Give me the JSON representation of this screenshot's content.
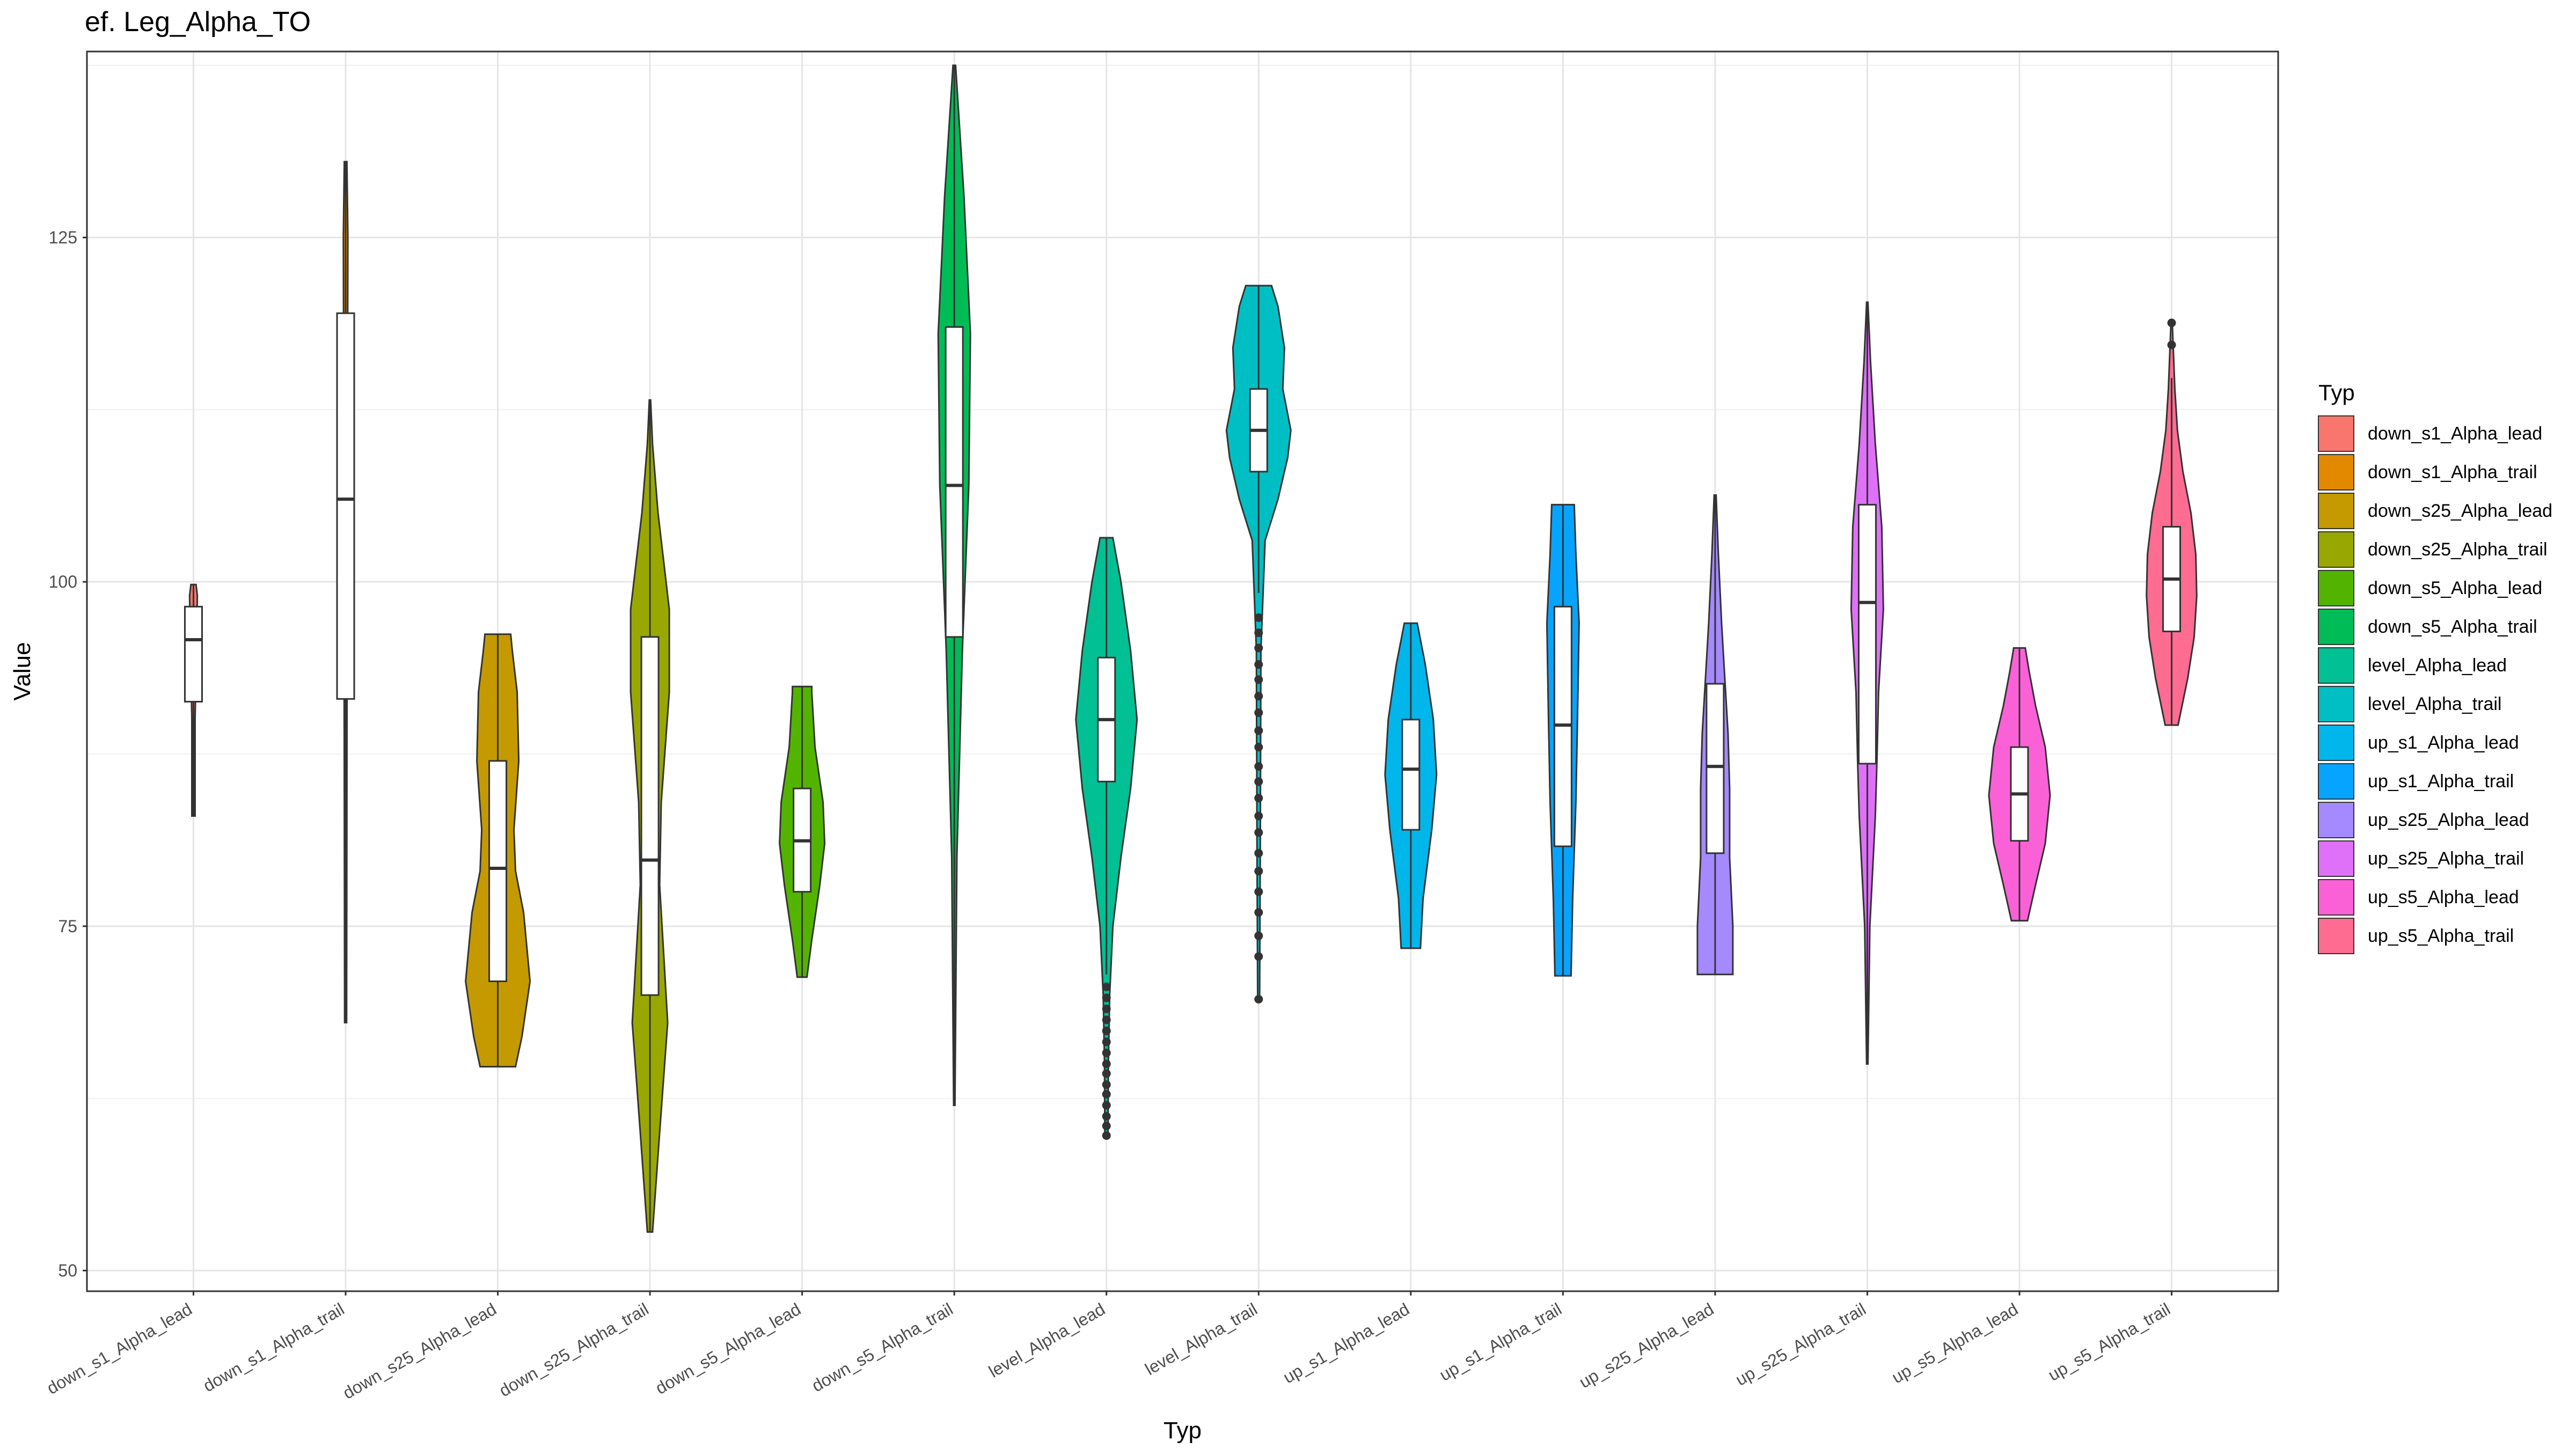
{
  "chart_data": {
    "type": "violin",
    "title": "ef. Leg_Alpha_TO",
    "xlabel": "Typ",
    "ylabel": "Value",
    "ylim": [
      48.5,
      138.5
    ],
    "yticks": [
      50,
      75,
      100,
      125
    ],
    "grid": true,
    "legend": {
      "title": "Typ",
      "position": "right"
    },
    "categories": [
      "down_s1_Alpha_lead",
      "down_s1_Alpha_trail",
      "down_s25_Alpha_lead",
      "down_s25_Alpha_trail",
      "down_s5_Alpha_lead",
      "down_s5_Alpha_trail",
      "level_Alpha_lead",
      "level_Alpha_trail",
      "up_s1_Alpha_lead",
      "up_s1_Alpha_trail",
      "up_s25_Alpha_lead",
      "up_s25_Alpha_trail",
      "up_s5_Alpha_lead",
      "up_s5_Alpha_trail"
    ],
    "series": [
      {
        "name": "down_s1_Alpha_lead",
        "color": "#F8766D",
        "min": 83.0,
        "max": 99.8,
        "q1": 91.3,
        "median": 95.8,
        "q3": 98.2,
        "whisker_low": 83.0,
        "whisker_high": 99.8,
        "outliers": [],
        "density": [
          [
            83.0,
            0.05
          ],
          [
            90.0,
            0.05
          ],
          [
            96.0,
            0.1
          ],
          [
            99.0,
            0.12
          ],
          [
            99.8,
            0.08
          ]
        ]
      },
      {
        "name": "down_s1_Alpha_trail",
        "color": "#E38900",
        "min": 68.0,
        "max": 130.5,
        "q1": 91.5,
        "median": 106.0,
        "q3": 119.5,
        "whisker_low": 68.0,
        "whisker_high": 130.5,
        "outliers": [],
        "density": [
          [
            68.0,
            0.03
          ],
          [
            85.0,
            0.04
          ],
          [
            100.0,
            0.05
          ],
          [
            115.0,
            0.06
          ],
          [
            125.0,
            0.07
          ],
          [
            130.5,
            0.04
          ]
        ]
      },
      {
        "name": "down_s25_Alpha_lead",
        "color": "#C49A00",
        "min": 64.8,
        "max": 96.2,
        "q1": 71.0,
        "median": 79.2,
        "q3": 87.0,
        "whisker_low": 64.8,
        "whisker_high": 96.2,
        "outliers": [],
        "density": [
          [
            64.8,
            0.55
          ],
          [
            67.0,
            0.75
          ],
          [
            71.0,
            1.0
          ],
          [
            76.0,
            0.8
          ],
          [
            79.0,
            0.55
          ],
          [
            82.0,
            0.5
          ],
          [
            87.0,
            0.65
          ],
          [
            92.0,
            0.6
          ],
          [
            95.0,
            0.45
          ],
          [
            96.2,
            0.4
          ]
        ]
      },
      {
        "name": "down_s25_Alpha_trail",
        "color": "#99A800",
        "min": 52.8,
        "max": 113.2,
        "q1": 70.0,
        "median": 79.8,
        "q3": 96.0,
        "whisker_low": 52.8,
        "whisker_high": 113.2,
        "outliers": [],
        "density": [
          [
            52.8,
            0.08
          ],
          [
            60.0,
            0.3
          ],
          [
            68.0,
            0.55
          ],
          [
            72.0,
            0.45
          ],
          [
            78.0,
            0.3
          ],
          [
            84.0,
            0.35
          ],
          [
            92.0,
            0.6
          ],
          [
            98.0,
            0.6
          ],
          [
            105.0,
            0.25
          ],
          [
            110.0,
            0.08
          ],
          [
            113.2,
            0.02
          ]
        ]
      },
      {
        "name": "down_s5_Alpha_lead",
        "color": "#53B400",
        "min": 71.3,
        "max": 92.4,
        "q1": 77.5,
        "median": 81.2,
        "q3": 85.0,
        "whisker_low": 71.3,
        "whisker_high": 92.4,
        "outliers": [],
        "density": [
          [
            71.3,
            0.15
          ],
          [
            74.0,
            0.3
          ],
          [
            78.0,
            0.55
          ],
          [
            81.0,
            0.7
          ],
          [
            84.0,
            0.65
          ],
          [
            88.0,
            0.4
          ],
          [
            92.0,
            0.3
          ],
          [
            92.4,
            0.3
          ]
        ]
      },
      {
        "name": "down_s5_Alpha_trail",
        "color": "#00BC56",
        "min": 62.0,
        "max": 137.5,
        "q1": 96.0,
        "median": 107.0,
        "q3": 118.5,
        "whisker_low": 62.0,
        "whisker_high": 137.5,
        "outliers": [],
        "density": [
          [
            62.0,
            0.02
          ],
          [
            80.0,
            0.08
          ],
          [
            95.0,
            0.25
          ],
          [
            107.0,
            0.45
          ],
          [
            118.0,
            0.5
          ],
          [
            128.0,
            0.3
          ],
          [
            137.5,
            0.04
          ]
        ]
      },
      {
        "name": "level_Alpha_lead",
        "color": "#00C094",
        "min": 59.8,
        "max": 103.2,
        "q1": 85.5,
        "median": 90.0,
        "q3": 94.5,
        "whisker_low": 71.5,
        "whisker_high": 103.2,
        "outliers": [
          59.8,
          60.5,
          61.2,
          62.0,
          62.8,
          63.5,
          64.3,
          65.0,
          65.8,
          66.6,
          67.4,
          68.2,
          69.0,
          69.8,
          70.6
        ],
        "density": [
          [
            59.8,
            0.05
          ],
          [
            65.0,
            0.06
          ],
          [
            70.0,
            0.1
          ],
          [
            75.0,
            0.2
          ],
          [
            80.0,
            0.45
          ],
          [
            85.0,
            0.75
          ],
          [
            90.0,
            0.95
          ],
          [
            95.0,
            0.75
          ],
          [
            100.0,
            0.45
          ],
          [
            103.2,
            0.2
          ]
        ]
      },
      {
        "name": "level_Alpha_trail",
        "color": "#00BFC4",
        "min": 69.7,
        "max": 121.5,
        "q1": 108.0,
        "median": 111.0,
        "q3": 114.0,
        "whisker_low": 99.2,
        "whisker_high": 121.5,
        "outliers": [
          69.7,
          72.8,
          74.3,
          76.0,
          77.5,
          79.0,
          80.3,
          81.8,
          83.0,
          84.3,
          85.5,
          86.6,
          88.0,
          89.2,
          90.5,
          91.7,
          92.9,
          94.0,
          95.2,
          96.3,
          97.4
        ],
        "density": [
          [
            69.7,
            0.03
          ],
          [
            80.0,
            0.05
          ],
          [
            95.0,
            0.07
          ],
          [
            103.0,
            0.2
          ],
          [
            106.0,
            0.6
          ],
          [
            109.0,
            0.9
          ],
          [
            111.0,
            1.0
          ],
          [
            114.0,
            0.75
          ],
          [
            117.0,
            0.8
          ],
          [
            120.0,
            0.6
          ],
          [
            121.5,
            0.4
          ]
        ]
      },
      {
        "name": "up_s1_Alpha_lead",
        "color": "#00B6EB",
        "min": 73.4,
        "max": 97.0,
        "q1": 82.0,
        "median": 86.4,
        "q3": 90.0,
        "whisker_low": 73.4,
        "whisker_high": 97.0,
        "outliers": [],
        "density": [
          [
            73.4,
            0.3
          ],
          [
            77.0,
            0.38
          ],
          [
            82.0,
            0.65
          ],
          [
            86.0,
            0.8
          ],
          [
            90.0,
            0.7
          ],
          [
            94.0,
            0.45
          ],
          [
            97.0,
            0.2
          ]
        ]
      },
      {
        "name": "up_s1_Alpha_trail",
        "color": "#06A4FF",
        "min": 71.4,
        "max": 105.6,
        "q1": 80.8,
        "median": 89.6,
        "q3": 98.2,
        "whisker_low": 71.4,
        "whisker_high": 105.6,
        "outliers": [],
        "density": [
          [
            71.4,
            0.25
          ],
          [
            77.0,
            0.3
          ],
          [
            84.0,
            0.4
          ],
          [
            90.0,
            0.45
          ],
          [
            97.0,
            0.5
          ],
          [
            102.0,
            0.4
          ],
          [
            105.6,
            0.35
          ]
        ]
      },
      {
        "name": "up_s25_Alpha_lead",
        "color": "#A58AFF",
        "min": 71.5,
        "max": 106.3,
        "q1": 80.3,
        "median": 86.6,
        "q3": 92.6,
        "whisker_low": 71.5,
        "whisker_high": 106.3,
        "outliers": [],
        "density": [
          [
            71.5,
            0.55
          ],
          [
            75.0,
            0.55
          ],
          [
            80.0,
            0.45
          ],
          [
            85.0,
            0.45
          ],
          [
            89.0,
            0.4
          ],
          [
            93.0,
            0.3
          ],
          [
            97.0,
            0.2
          ],
          [
            102.0,
            0.1
          ],
          [
            106.3,
            0.03
          ]
        ]
      },
      {
        "name": "up_s25_Alpha_trail",
        "color": "#DF70F8",
        "min": 65.0,
        "max": 120.3,
        "q1": 86.8,
        "median": 98.5,
        "q3": 105.6,
        "whisker_low": 65.0,
        "whisker_high": 120.3,
        "outliers": [],
        "density": [
          [
            65.0,
            0.02
          ],
          [
            75.0,
            0.08
          ],
          [
            83.0,
            0.25
          ],
          [
            87.0,
            0.3
          ],
          [
            92.0,
            0.35
          ],
          [
            98.0,
            0.5
          ],
          [
            104.0,
            0.45
          ],
          [
            110.0,
            0.25
          ],
          [
            116.0,
            0.1
          ],
          [
            120.3,
            0.02
          ]
        ]
      },
      {
        "name": "up_s5_Alpha_lead",
        "color": "#FB61D7",
        "min": 75.4,
        "max": 95.2,
        "q1": 81.2,
        "median": 84.6,
        "q3": 88.0,
        "whisker_low": 75.4,
        "whisker_high": 95.2,
        "outliers": [],
        "density": [
          [
            75.4,
            0.25
          ],
          [
            78.0,
            0.5
          ],
          [
            81.0,
            0.8
          ],
          [
            84.5,
            0.95
          ],
          [
            88.0,
            0.8
          ],
          [
            91.0,
            0.5
          ],
          [
            93.5,
            0.3
          ],
          [
            95.2,
            0.18
          ]
        ]
      },
      {
        "name": "up_s5_Alpha_trail",
        "color": "#FF6C91",
        "min": 89.6,
        "max": 118.8,
        "q1": 96.4,
        "median": 100.2,
        "q3": 104.0,
        "whisker_low": 89.6,
        "whisker_high": 114.8,
        "outliers": [
          117.2,
          118.8
        ],
        "density": [
          [
            89.6,
            0.2
          ],
          [
            93.0,
            0.5
          ],
          [
            96.0,
            0.7
          ],
          [
            99.0,
            0.78
          ],
          [
            102.0,
            0.75
          ],
          [
            105.0,
            0.6
          ],
          [
            108.0,
            0.35
          ],
          [
            111.0,
            0.18
          ],
          [
            114.0,
            0.1
          ],
          [
            118.8,
            0.02
          ]
        ]
      }
    ]
  }
}
